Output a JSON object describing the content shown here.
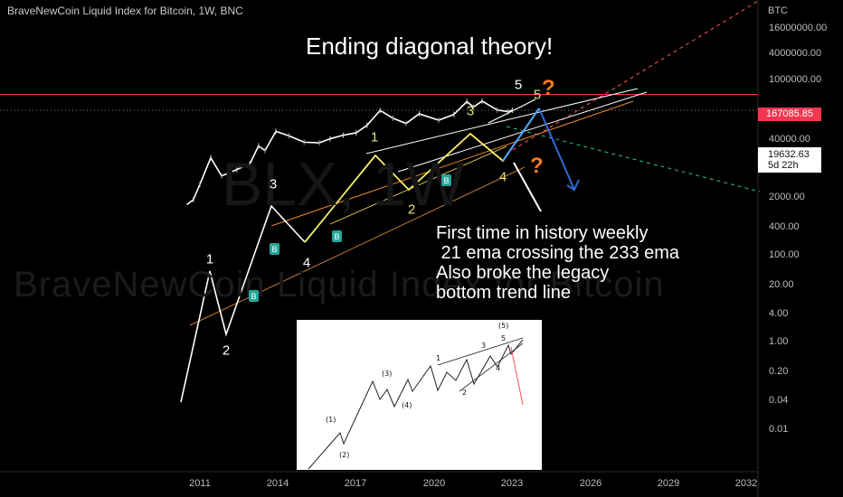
{
  "header": {
    "title": "BraveNewCoin Liquid Index for Bitcoin, 1W, BNC"
  },
  "headline": "Ending diagonal theory!",
  "note_lines": [
    "First time in history weekly",
    " 21 ema crossing the 233 ema",
    "Also broke the legacy",
    "bottom trend line"
  ],
  "watermark": {
    "line1": "BraveNewCoin Liquid Index for Bitcoin",
    "line2": "BLX, 1W"
  },
  "price_badge": "167085.85",
  "current_price": {
    "price": "19632.63",
    "countdown": "5d 22h"
  },
  "axis": {
    "currency": "BTC",
    "y_ticks": [
      "16000000.00",
      "4000000.00",
      "1000000.00",
      "40000.00",
      "2000.00",
      "400.00",
      "100.00",
      "20.00",
      "4.00",
      "1.00",
      "0.20",
      "0.04",
      "0.01"
    ],
    "x_ticks": [
      "2011",
      "2014",
      "2017",
      "2020",
      "2023",
      "2026",
      "2029",
      "2032"
    ]
  },
  "wave_labels": {
    "white": [
      "1",
      "2",
      "3",
      "4",
      "5"
    ],
    "yellow": [
      "1",
      "2",
      "3",
      "4",
      "5"
    ],
    "buy_markers": [
      "B",
      "B",
      "B",
      "B"
    ],
    "question_marks": [
      "?",
      "?"
    ]
  },
  "inset": {
    "labels": [
      "(1)",
      "(2)",
      "(3)",
      "(4)",
      "1",
      "2",
      "3",
      "4",
      "5",
      "(5)"
    ]
  },
  "colors": {
    "background": "#000000",
    "price_line": "#f23751",
    "yellow_wave": "#f5ee6a",
    "forecast_up": "#4aa3ff",
    "forecast_down": "#2f6bd6",
    "orange_question": "#ff7a1c",
    "buy_marker": "#26a69a",
    "trend_dashed_red": "#ff5a5a",
    "trend_dashed_teal": "#2fbf9f"
  },
  "chart_data": {
    "type": "line",
    "title": "BraveNewCoin Liquid Index for Bitcoin, 1W, BNC",
    "y_scale": "log",
    "currency": "BTC",
    "x": [
      "2010-07",
      "2010-10",
      "2011-01",
      "2011-06",
      "2011-11",
      "2012-06",
      "2012-12",
      "2013-04",
      "2013-07",
      "2013-12",
      "2014-06",
      "2015-01",
      "2015-08",
      "2016-01",
      "2016-07",
      "2017-01",
      "2017-06",
      "2017-12",
      "2018-06",
      "2018-12",
      "2019-06",
      "2020-03",
      "2020-10",
      "2021-04",
      "2021-07",
      "2021-11",
      "2022-06",
      "2022-11",
      "2023-01"
    ],
    "series": [
      {
        "values": [
          0.05,
          0.1,
          0.8,
          30,
          2.5,
          6,
          13,
          150,
          80,
          1100,
          600,
          250,
          230,
          400,
          650,
          900,
          2500,
          19000,
          6500,
          3200,
          12000,
          5000,
          11000,
          63000,
          30000,
          68000,
          20000,
          16000,
          19632.63
        ]
      }
    ],
    "horizontal_line": 167085.85,
    "current_price": 19632.63
  }
}
